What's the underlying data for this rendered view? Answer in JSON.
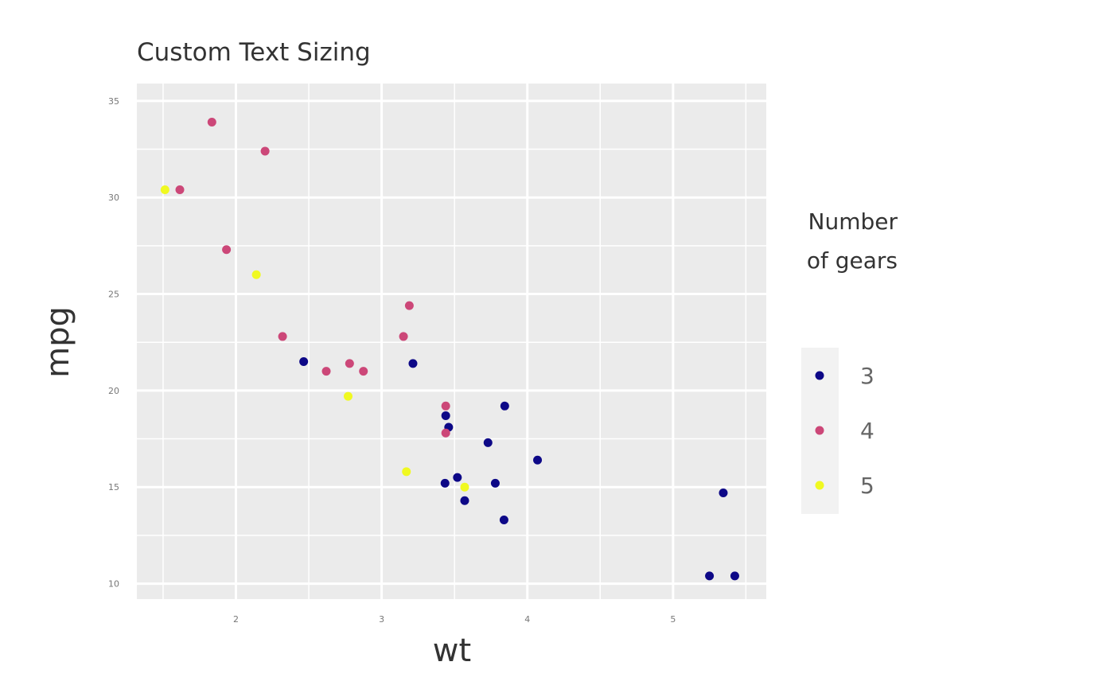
{
  "chart_data": {
    "type": "scatter",
    "title": "Custom Text Sizing",
    "xlabel": "wt",
    "ylabel": "mpg",
    "xlim": [
      1.32,
      5.64
    ],
    "ylim": [
      9.2,
      35.9
    ],
    "x_ticks": [
      2,
      3,
      4,
      5
    ],
    "y_ticks": [
      10,
      15,
      20,
      25,
      30,
      35
    ],
    "x_minor": [
      1.5,
      2.5,
      3.5,
      4.5,
      5.5
    ],
    "y_minor": [
      12.5,
      17.5,
      22.5,
      27.5,
      32.5
    ],
    "grid": true,
    "legend": {
      "title_lines": [
        "Number",
        "of gears"
      ],
      "position": "right",
      "entries": [
        {
          "label": "3",
          "color": "#0d0887"
        },
        {
          "label": "4",
          "color": "#cc4778"
        },
        {
          "label": "5",
          "color": "#f0f921"
        }
      ]
    },
    "series": [
      {
        "group": "3",
        "color": "#0d0887",
        "points": [
          [
            2.465,
            21.5
          ],
          [
            3.215,
            21.4
          ],
          [
            3.44,
            18.7
          ],
          [
            3.46,
            18.1
          ],
          [
            3.57,
            14.3
          ],
          [
            4.07,
            16.4
          ],
          [
            3.73,
            17.3
          ],
          [
            3.78,
            15.2
          ],
          [
            5.25,
            10.4
          ],
          [
            5.424,
            10.4
          ],
          [
            5.345,
            14.7
          ],
          [
            3.52,
            15.5
          ],
          [
            3.435,
            15.2
          ],
          [
            3.84,
            13.3
          ],
          [
            3.845,
            19.2
          ]
        ]
      },
      {
        "group": "4",
        "color": "#cc4778",
        "points": [
          [
            2.62,
            21.0
          ],
          [
            2.875,
            21.0
          ],
          [
            2.32,
            22.8
          ],
          [
            3.19,
            24.4
          ],
          [
            3.15,
            22.8
          ],
          [
            3.44,
            19.2
          ],
          [
            3.44,
            17.8
          ],
          [
            2.2,
            32.4
          ],
          [
            1.615,
            30.4
          ],
          [
            1.835,
            33.9
          ],
          [
            1.935,
            27.3
          ],
          [
            2.78,
            21.4
          ]
        ]
      },
      {
        "group": "5",
        "color": "#f0f921",
        "points": [
          [
            2.14,
            26.0
          ],
          [
            1.513,
            30.4
          ],
          [
            3.17,
            15.8
          ],
          [
            2.77,
            19.7
          ],
          [
            3.57,
            15.0
          ]
        ]
      }
    ]
  }
}
